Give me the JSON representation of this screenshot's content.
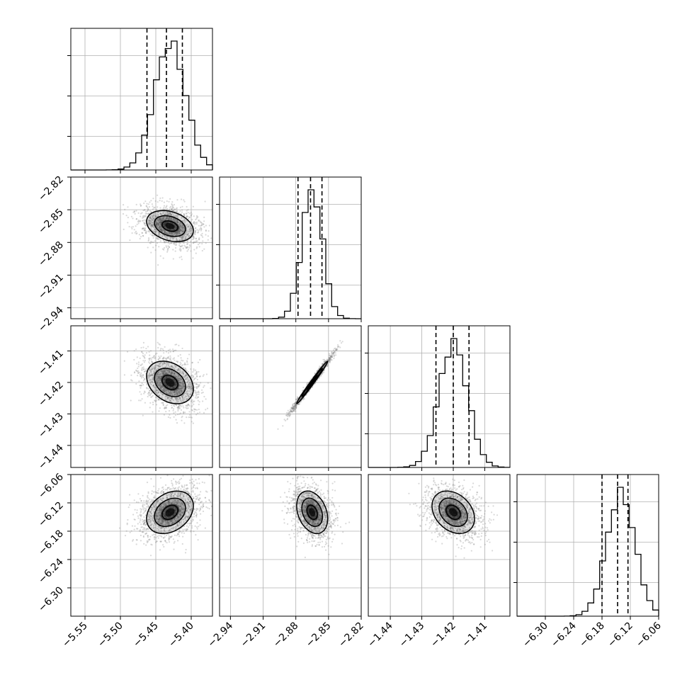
{
  "chart_data": {
    "type": "corner",
    "parameters": [
      {
        "range": [
          -5.57,
          -5.37
        ],
        "ticks": [
          -5.55,
          -5.5,
          -5.45,
          -5.4
        ],
        "tick_labels": [
          "−5.55",
          "−5.50",
          "−5.45",
          "−5.40"
        ],
        "mean": -5.43,
        "sd": 0.022,
        "quantiles": [
          -5.4625,
          -5.435,
          -5.4125
        ]
      },
      {
        "range": [
          -2.95,
          -2.82
        ],
        "ticks": [
          -2.94,
          -2.91,
          -2.88,
          -2.85,
          -2.82
        ],
        "tick_labels": [
          "−2.94",
          "−2.91",
          "−2.88",
          "−2.85",
          "−2.82"
        ],
        "mean": -2.865,
        "sd": 0.0095,
        "quantiles": [
          -2.878,
          -2.8665,
          -2.856
        ]
      },
      {
        "range": [
          -1.447,
          -1.402
        ],
        "ticks": [
          -1.44,
          -1.43,
          -1.42,
          -1.41
        ],
        "tick_labels": [
          "−1.44",
          "−1.43",
          "−1.42",
          "−1.41"
        ],
        "mean": -1.42,
        "sd": 0.0045,
        "quantiles": [
          -1.4255,
          -1.42,
          -1.415
        ]
      },
      {
        "range": [
          -6.36,
          -6.06
        ],
        "ticks": [
          -6.3,
          -6.24,
          -6.18,
          -6.12,
          -6.06
        ],
        "tick_labels": [
          "−6.30",
          "−6.24",
          "−6.18",
          "−6.12",
          "−6.06"
        ],
        "mean": -6.14,
        "sd": 0.03,
        "quantiles": [
          -6.18,
          -6.147,
          -6.125
        ]
      }
    ],
    "correlations": {
      "1-0": -0.3,
      "2-0": -0.3,
      "2-1": 0.99,
      "3-0": 0.3,
      "3-1": -0.3,
      "3-2": -0.3
    },
    "contour_levels": [
      0.5,
      1.0,
      1.5
    ],
    "grid": true,
    "colors": {
      "scatter": "#808080",
      "line": "#000000",
      "grid": "#b0b0b0"
    }
  }
}
